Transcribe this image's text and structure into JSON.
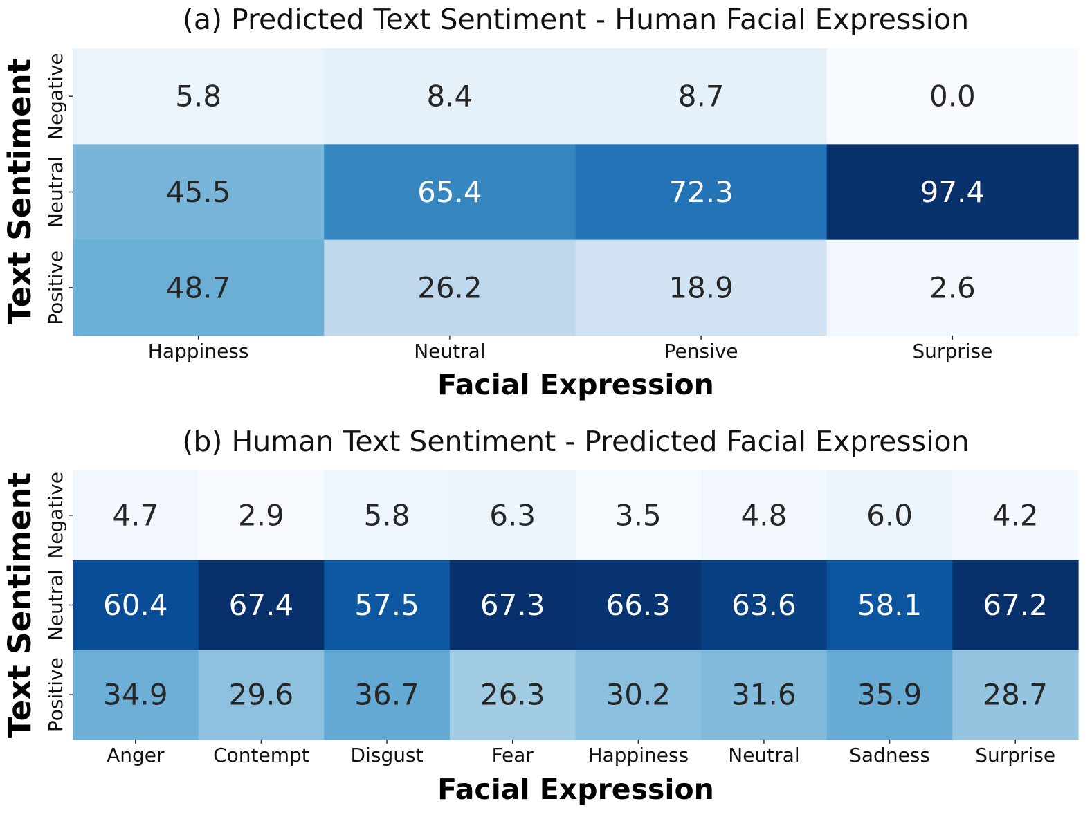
{
  "chart_data": [
    {
      "type": "heatmap",
      "title": "(a) Predicted Text Sentiment - Human Facial Expression",
      "xlabel": "Facial Expression",
      "ylabel": "Text Sentiment",
      "x_categories": [
        "Happiness",
        "Neutral",
        "Pensive",
        "Surprise"
      ],
      "y_categories": [
        "Negative",
        "Neutral",
        "Positive"
      ],
      "values": [
        [
          5.8,
          8.4,
          8.7,
          0.0
        ],
        [
          45.5,
          65.4,
          72.3,
          97.4
        ],
        [
          48.7,
          26.2,
          18.9,
          2.6
        ]
      ],
      "colormap": "Blues",
      "vmin": 0.0,
      "vmax": 97.4
    },
    {
      "type": "heatmap",
      "title": "(b) Human Text Sentiment - Predicted Facial Expression",
      "xlabel": "Facial Expression",
      "ylabel": "Text Sentiment",
      "x_categories": [
        "Anger",
        "Contempt",
        "Disgust",
        "Fear",
        "Happiness",
        "Neutral",
        "Sadness",
        "Surprise"
      ],
      "y_categories": [
        "Negative",
        "Neutral",
        "Positive"
      ],
      "values": [
        [
          4.7,
          2.9,
          5.8,
          6.3,
          3.5,
          4.8,
          6.0,
          4.2
        ],
        [
          60.4,
          67.4,
          57.5,
          67.3,
          66.3,
          63.6,
          58.1,
          67.2
        ],
        [
          34.9,
          29.6,
          36.7,
          26.3,
          30.2,
          31.6,
          35.9,
          28.7
        ]
      ],
      "colormap": "Blues",
      "vmin": 2.9,
      "vmax": 67.4
    }
  ]
}
